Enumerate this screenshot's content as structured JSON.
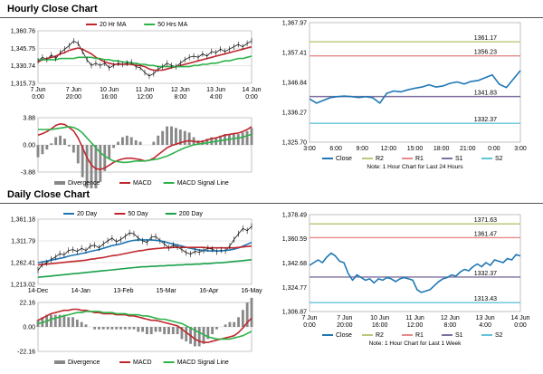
{
  "sections": {
    "hourly_title": "Hourly Close Chart",
    "daily_title": "Daily Close Chart"
  },
  "colors": {
    "close": "#1f77b4",
    "ma_short": "#c0272d",
    "ma_long": "#2db34a",
    "ma_200": "#1aa04a",
    "r2": "#b8c97a",
    "r1": "#e88a8a",
    "s1": "#7f6f9f",
    "s2": "#62c4d6",
    "bars": "#888888",
    "grid": "#d0d0d0"
  },
  "chart_data": [
    {
      "id": "hourly-price",
      "type": "line",
      "yticks": [
        1315.73,
        1330.74,
        1345.75,
        1360.76
      ],
      "ylim": [
        1315.73,
        1360.76
      ],
      "xticks": [
        "7 Jun\n0:00",
        "7 Jun\n20:00",
        "10 Jun\n16:00",
        "11 Jun\n12:00",
        "12 Jun\n8:00",
        "13 Jun\n4:00",
        "14 Jun\n0:00"
      ],
      "legend": [
        "20 Hr MA",
        "50 Hrs MA"
      ],
      "series": [
        {
          "name": "Close",
          "values": [
            1335,
            1338,
            1336,
            1340,
            1337,
            1342,
            1345,
            1348,
            1352,
            1350,
            1343,
            1336,
            1331,
            1333,
            1331,
            1333,
            1329,
            1331,
            1333,
            1332,
            1333,
            1334,
            1330,
            1329,
            1325,
            1322,
            1324,
            1328,
            1330,
            1333,
            1331,
            1330,
            1333,
            1336,
            1338,
            1339,
            1338,
            1341,
            1339,
            1343,
            1342,
            1345,
            1343,
            1345,
            1347,
            1349,
            1347,
            1350,
            1352
          ]
        },
        {
          "name": "20 Hr MA",
          "values": [
            1334,
            1336,
            1337,
            1338,
            1339,
            1341,
            1342,
            1344,
            1345,
            1346,
            1345,
            1343,
            1341,
            1338,
            1336,
            1334,
            1333,
            1332,
            1332,
            1332,
            1332,
            1332,
            1331,
            1331,
            1330,
            1328,
            1327,
            1327,
            1327,
            1328,
            1329,
            1330,
            1331,
            1332,
            1333,
            1334,
            1335,
            1336,
            1337,
            1338,
            1339,
            1340,
            1341,
            1342,
            1343,
            1344,
            1345,
            1346,
            1347
          ]
        },
        {
          "name": "50 Hrs MA",
          "values": [
            1336,
            1336,
            1336,
            1336,
            1336,
            1337,
            1337,
            1337,
            1337,
            1338,
            1338,
            1338,
            1338,
            1337,
            1337,
            1336,
            1336,
            1335,
            1335,
            1334,
            1334,
            1333,
            1333,
            1332,
            1332,
            1331,
            1331,
            1330,
            1330,
            1330,
            1330,
            1330,
            1330,
            1330,
            1330,
            1331,
            1331,
            1332,
            1332,
            1333,
            1333,
            1334,
            1335,
            1335,
            1336,
            1337,
            1337,
            1338,
            1339
          ]
        }
      ]
    },
    {
      "id": "hourly-macd",
      "type": "line",
      "yticks": [
        -3.88,
        0.0,
        3.88
      ],
      "ylim": [
        -3.88,
        3.88
      ],
      "legend": [
        "Divergence",
        "MACD",
        "MACD Signal Line"
      ],
      "series": [
        {
          "name": "MACD",
          "values": [
            1.4,
            1.6,
            1.9,
            2.3,
            2.8,
            3.0,
            2.9,
            2.5,
            2.0,
            1.0,
            -0.4,
            -1.8,
            -2.9,
            -3.4,
            -3.5,
            -3.3,
            -2.9,
            -2.5,
            -2.2,
            -2.0,
            -1.9,
            -1.9,
            -2.0,
            -2.1,
            -2.3,
            -2.2,
            -1.9,
            -1.4,
            -0.9,
            -0.4,
            -0.1,
            0.1,
            0.3,
            0.5,
            0.6,
            0.5,
            0.4,
            0.5,
            0.7,
            0.9,
            1.0,
            1.2,
            1.4,
            1.5,
            1.6,
            1.7,
            1.9,
            2.2,
            2.6
          ]
        },
        {
          "name": "MACD Signal Line",
          "values": [
            2.2,
            2.2,
            2.2,
            2.2,
            2.3,
            2.4,
            2.5,
            2.6,
            2.5,
            2.2,
            1.7,
            1.0,
            0.3,
            -0.4,
            -1.1,
            -1.6,
            -2.0,
            -2.3,
            -2.4,
            -2.5,
            -2.5,
            -2.4,
            -2.3,
            -2.3,
            -2.3,
            -2.2,
            -2.1,
            -2.0,
            -1.8,
            -1.6,
            -1.3,
            -1.0,
            -0.7,
            -0.4,
            -0.2,
            0.0,
            0.1,
            0.2,
            0.3,
            0.4,
            0.5,
            0.6,
            0.7,
            0.8,
            0.9,
            1.0,
            1.1,
            1.3,
            1.5
          ]
        }
      ]
    },
    {
      "id": "hourly-levels",
      "type": "line",
      "yticks": [
        1325.7,
        1336.27,
        1346.84,
        1357.41,
        1367.97
      ],
      "ylim": [
        1325.7,
        1367.97
      ],
      "xticks": [
        "3:00",
        "6:00",
        "9:00",
        "12:00",
        "15:00",
        "18:00",
        "21:00",
        "0:00",
        "3:00"
      ],
      "levels": [
        {
          "name": "R2",
          "value": 1361.17,
          "label": "1361.17"
        },
        {
          "name": "R1",
          "value": 1356.23,
          "label": "1356.23"
        },
        {
          "name": "S1",
          "value": 1341.83,
          "label": "1341.83"
        },
        {
          "name": "S2",
          "value": 1332.37,
          "label": "1332.37"
        }
      ],
      "legend": [
        "Close",
        "R2",
        "R1",
        "S1",
        "S2"
      ],
      "note": "Note: 1 Hour Chart for Last 24 Hours",
      "series": [
        {
          "name": "Close",
          "values": [
            1341.0,
            1339.5,
            1340.5,
            1341.5,
            1341.8,
            1342.0,
            1341.8,
            1341.5,
            1341.8,
            1341.4,
            1339.5,
            1343.0,
            1343.8,
            1343.5,
            1344.2,
            1344.8,
            1345.2,
            1346.0,
            1345.2,
            1345.6,
            1346.5,
            1347.0,
            1346.3,
            1347.2,
            1347.5,
            1348.5,
            1349.5,
            1346.2,
            1345.0,
            1348.0,
            1351.0
          ]
        }
      ]
    },
    {
      "id": "daily-price",
      "type": "line",
      "yticks": [
        1213.02,
        1262.41,
        1311.79,
        1361.18
      ],
      "ylim": [
        1213.02,
        1361.18
      ],
      "xticks": [
        "14-Dec",
        "14-Jan",
        "13-Feb",
        "15-Mar",
        "16-Apr",
        "16-May"
      ],
      "legend": [
        "20 Day",
        "50 Day",
        "200 Day"
      ],
      "series": [
        {
          "name": "Close",
          "values": [
            1245,
            1258,
            1262,
            1270,
            1275,
            1283,
            1280,
            1290,
            1292,
            1288,
            1295,
            1290,
            1300,
            1302,
            1296,
            1305,
            1312,
            1318,
            1310,
            1315,
            1322,
            1330,
            1328,
            1318,
            1312,
            1308,
            1320,
            1322,
            1312,
            1305,
            1296,
            1302,
            1298,
            1292,
            1285,
            1282,
            1288,
            1286,
            1290,
            1295,
            1293,
            1287,
            1291,
            1289,
            1300,
            1315,
            1328,
            1340,
            1335,
            1345
          ]
        },
        {
          "name": "20 Day",
          "values": [
            1262,
            1264,
            1266,
            1268,
            1270,
            1272,
            1274,
            1277,
            1279,
            1281,
            1283,
            1285,
            1288,
            1290,
            1292,
            1295,
            1298,
            1301,
            1303,
            1305,
            1308,
            1311,
            1313,
            1314,
            1314,
            1314,
            1314,
            1313,
            1312,
            1310,
            1307,
            1305,
            1302,
            1300,
            1297,
            1295,
            1293,
            1291,
            1290,
            1289,
            1289,
            1289,
            1289,
            1290,
            1291,
            1293,
            1296,
            1300,
            1304,
            1308
          ]
        },
        {
          "name": "50 Day",
          "values": [
            1257,
            1258,
            1259,
            1260,
            1261,
            1262,
            1263,
            1264,
            1265,
            1266,
            1267,
            1268,
            1270,
            1271,
            1273,
            1274,
            1276,
            1278,
            1279,
            1281,
            1283,
            1285,
            1287,
            1289,
            1290,
            1292,
            1293,
            1294,
            1295,
            1296,
            1296,
            1297,
            1297,
            1297,
            1297,
            1297,
            1297,
            1297,
            1297,
            1296,
            1296,
            1296,
            1296,
            1296,
            1296,
            1296,
            1297,
            1298,
            1299,
            1300
          ]
        },
        {
          "name": "200 Day",
          "values": [
            1229,
            1230,
            1231,
            1232,
            1233,
            1234,
            1235,
            1236,
            1237,
            1238,
            1239,
            1240,
            1241,
            1242,
            1243,
            1244,
            1245,
            1246,
            1247,
            1248,
            1249,
            1250,
            1251,
            1252,
            1253,
            1253,
            1254,
            1254,
            1255,
            1255,
            1256,
            1256,
            1257,
            1257,
            1258,
            1258,
            1259,
            1259,
            1260,
            1260,
            1261,
            1262,
            1262,
            1263,
            1264,
            1265,
            1266,
            1267,
            1268,
            1269
          ]
        }
      ]
    },
    {
      "id": "daily-macd",
      "type": "line",
      "yticks": [
        -22.16,
        0.0,
        22.16
      ],
      "ylim": [
        -22.16,
        22.16
      ],
      "legend": [
        "Divergence",
        "MACD",
        "MACD Signal Line"
      ],
      "series": [
        {
          "name": "MACD",
          "values": [
            6,
            8,
            10,
            12,
            13,
            14,
            15,
            15,
            16,
            16,
            15,
            15,
            14,
            13,
            13,
            12,
            12,
            12,
            11,
            11,
            11,
            10,
            10,
            9,
            8,
            7,
            6,
            6,
            5,
            4,
            3,
            2,
            1,
            -2,
            -5,
            -8,
            -11,
            -13,
            -14,
            -14,
            -13,
            -12,
            -11,
            -10,
            -9,
            -8,
            -5,
            -1,
            4,
            8
          ]
        },
        {
          "name": "MACD Signal Line",
          "values": [
            3,
            4,
            5,
            7,
            8,
            9,
            10,
            11,
            12,
            13,
            13,
            14,
            14,
            14,
            14,
            13,
            13,
            13,
            12,
            12,
            12,
            11,
            11,
            11,
            10,
            10,
            9,
            8,
            7,
            7,
            6,
            5,
            4,
            3,
            1,
            -1,
            -3,
            -5,
            -7,
            -9,
            -10,
            -11,
            -11,
            -11,
            -11,
            -10,
            -9,
            -8,
            -6,
            -4
          ]
        }
      ]
    },
    {
      "id": "daily-levels",
      "type": "line",
      "yticks": [
        1306.87,
        1324.77,
        1342.68,
        1360.59,
        1378.49
      ],
      "ylim": [
        1306.87,
        1378.49
      ],
      "xticks": [
        "7 Jun\n0:00",
        "7 Jun\n20:00",
        "10 Jun\n16:00",
        "11 Jun\n12:00",
        "12 Jun\n8:00",
        "13 Jun\n4:00",
        "14 Jun\n0:00"
      ],
      "levels": [
        {
          "name": "R2",
          "value": 1371.63,
          "label": "1371.63"
        },
        {
          "name": "R1",
          "value": 1361.47,
          "label": "1361.47"
        },
        {
          "name": "S1",
          "value": 1332.37,
          "label": "1332.37"
        },
        {
          "name": "S2",
          "value": 1313.43,
          "label": "1313.43"
        }
      ],
      "legend": [
        "Close",
        "R2",
        "R1",
        "S1",
        "S2"
      ],
      "note": "Note: 1 Hour Chart for Last 1 Week",
      "series": [
        {
          "name": "Close",
          "values": [
            1341,
            1343,
            1345,
            1343,
            1347,
            1350,
            1348,
            1344,
            1343,
            1335,
            1330,
            1334,
            1332,
            1330,
            1331,
            1328,
            1331,
            1330,
            1332,
            1331,
            1329,
            1331,
            1332,
            1331,
            1330,
            1323,
            1321,
            1322,
            1323,
            1326,
            1329,
            1331,
            1332,
            1334,
            1333,
            1336,
            1338,
            1337,
            1340,
            1342,
            1340,
            1343,
            1341,
            1345,
            1344,
            1343,
            1346,
            1345,
            1349,
            1348
          ]
        }
      ]
    }
  ]
}
